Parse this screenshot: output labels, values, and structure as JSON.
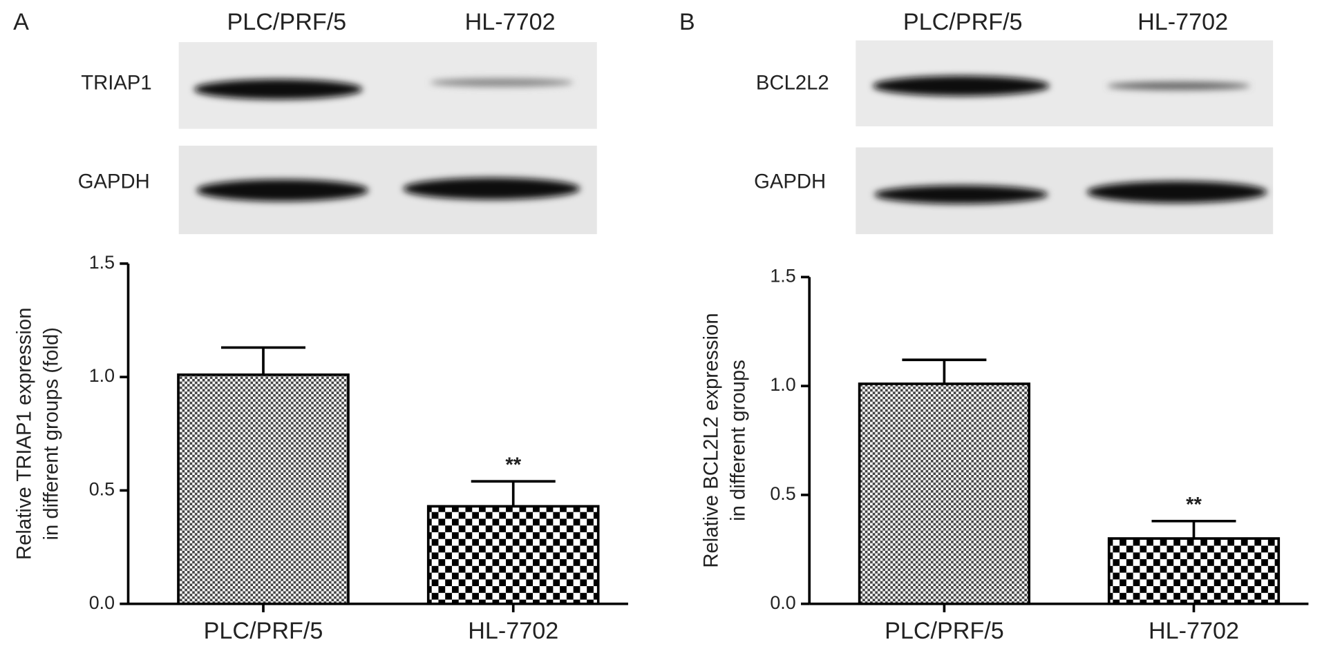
{
  "chart_data": [
    {
      "type": "bar",
      "panel": "A",
      "blot": {
        "lanes": [
          "PLC/PRF/5",
          "HL-7702"
        ],
        "bands": [
          "TRIAP1",
          "GAPDH"
        ]
      },
      "ylabel": [
        "Relative TRIAP1 expression",
        "in different groups (fold)"
      ],
      "categories": [
        "PLC/PRF/5",
        "HL-7702"
      ],
      "values": [
        1.01,
        0.43
      ],
      "errors": [
        0.12,
        0.11
      ],
      "significance": [
        null,
        "**"
      ],
      "color": "#000000",
      "ylim": [
        0,
        1.5
      ],
      "yticks": [
        {
          "value": 0,
          "label": "0.0"
        },
        0.5,
        {
          "value": 1,
          "label": "1.0"
        },
        1.5
      ]
    },
    {
      "type": "bar",
      "panel": "B",
      "blot": {
        "lanes": [
          "PLC/PRF/5",
          "HL-7702"
        ],
        "bands": [
          "BCL2L2",
          "GAPDH"
        ]
      },
      "ylabel": [
        "Relative BCL2L2 expression",
        "in different groups"
      ],
      "categories": [
        "PLC/PRF/5",
        "HL-7702"
      ],
      "values": [
        1.01,
        0.3
      ],
      "errors": [
        0.11,
        0.08
      ],
      "significance": [
        null,
        "**"
      ],
      "color": "#000000",
      "ylim": [
        0,
        1.5
      ],
      "yticks": [
        {
          "value": 0,
          "label": "0.0"
        },
        0.5,
        {
          "value": 1,
          "label": "1.0"
        },
        1.5
      ]
    }
  ]
}
